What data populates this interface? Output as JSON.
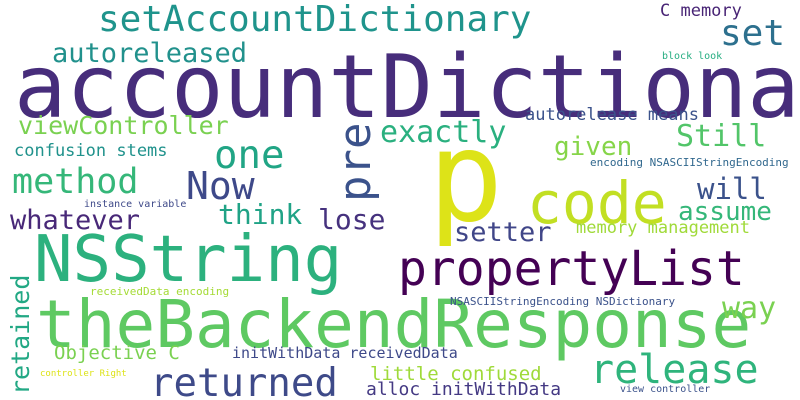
{
  "words": [
    {
      "id": "accountDictionary",
      "text": "accountDictionary",
      "color": "#472d7b"
    },
    {
      "id": "theBackendResponse",
      "text": "theBackendResponse",
      "color": "#5ec962"
    },
    {
      "id": "NSString",
      "text": "NSString",
      "color": "#2cb17e"
    },
    {
      "id": "propertyList",
      "text": "propertyList",
      "color": "#440154"
    },
    {
      "id": "p",
      "text": "p",
      "color": "#dde318"
    },
    {
      "id": "code",
      "text": "code",
      "color": "#c2df23"
    },
    {
      "id": "setAccountDictionary",
      "text": "setAccountDictionary",
      "color": "#1f948c"
    },
    {
      "id": "returned",
      "text": "returned",
      "color": "#3e4a89"
    },
    {
      "id": "release",
      "text": "release",
      "color": "#2fb47c"
    },
    {
      "id": "pre",
      "text": "pre",
      "color": "#3b528b"
    },
    {
      "id": "set",
      "text": "set",
      "color": "#2d708e"
    },
    {
      "id": "one",
      "text": "one",
      "color": "#21a585"
    },
    {
      "id": "method",
      "text": "method",
      "color": "#35b779"
    },
    {
      "id": "Now",
      "text": "Now",
      "color": "#3e4989"
    },
    {
      "id": "exactly",
      "text": "exactly",
      "color": "#2ab07f"
    },
    {
      "id": "autoreleased",
      "text": "autoreleased",
      "color": "#21918c"
    },
    {
      "id": "viewController",
      "text": "viewController",
      "color": "#7ad151"
    },
    {
      "id": "Still",
      "text": "Still",
      "color": "#52c569"
    },
    {
      "id": "given",
      "text": "given",
      "color": "#86d549"
    },
    {
      "id": "will",
      "text": "will",
      "color": "#3b528b"
    },
    {
      "id": "assume",
      "text": "assume",
      "color": "#35b779"
    },
    {
      "id": "whatever",
      "text": "whatever",
      "color": "#482878"
    },
    {
      "id": "think",
      "text": "think",
      "color": "#20a386"
    },
    {
      "id": "lose",
      "text": "lose",
      "color": "#46327e"
    },
    {
      "id": "setter",
      "text": "setter",
      "color": "#404688"
    },
    {
      "id": "way",
      "text": "way",
      "color": "#7ad151"
    },
    {
      "id": "retained",
      "text": "retained",
      "color": "#22a884"
    },
    {
      "id": "C_memory",
      "text": "C memory",
      "color": "#482475"
    },
    {
      "id": "autorelease_means",
      "text": "autorelease means",
      "color": "#3b528b"
    },
    {
      "id": "confusion_stems",
      "text": "confusion stems",
      "color": "#20928c"
    },
    {
      "id": "memory_management",
      "text": "memory management",
      "color": "#a0da39"
    },
    {
      "id": "little_confused",
      "text": "little confused",
      "color": "#9fda3a"
    },
    {
      "id": "Objective_C",
      "text": "Objective C",
      "color": "#7ad151"
    },
    {
      "id": "initWithData_receivedData",
      "text": "initWithData receivedData",
      "color": "#3e4989"
    },
    {
      "id": "alloc_initWithData",
      "text": "alloc initWithData",
      "color": "#443983"
    },
    {
      "id": "receivedData_encoding",
      "text": "receivedData encoding",
      "color": "#a5db36"
    },
    {
      "id": "NSASCIIStringEncoding_NSDictionary",
      "text": "NSASCIIStringEncoding NSDictionary",
      "color": "#3b528b"
    },
    {
      "id": "encoding_NSASCIIStringEncoding",
      "text": "encoding NSASCIIStringEncoding",
      "color": "#31688e"
    },
    {
      "id": "instance_variable",
      "text": "instance variable",
      "color": "#3e4989"
    },
    {
      "id": "block_look",
      "text": "block look",
      "color": "#26ad81"
    },
    {
      "id": "controller_Right",
      "text": "controller Right",
      "color": "#dde318"
    },
    {
      "id": "view_controller",
      "text": "view controller",
      "color": "#3b528b"
    }
  ]
}
